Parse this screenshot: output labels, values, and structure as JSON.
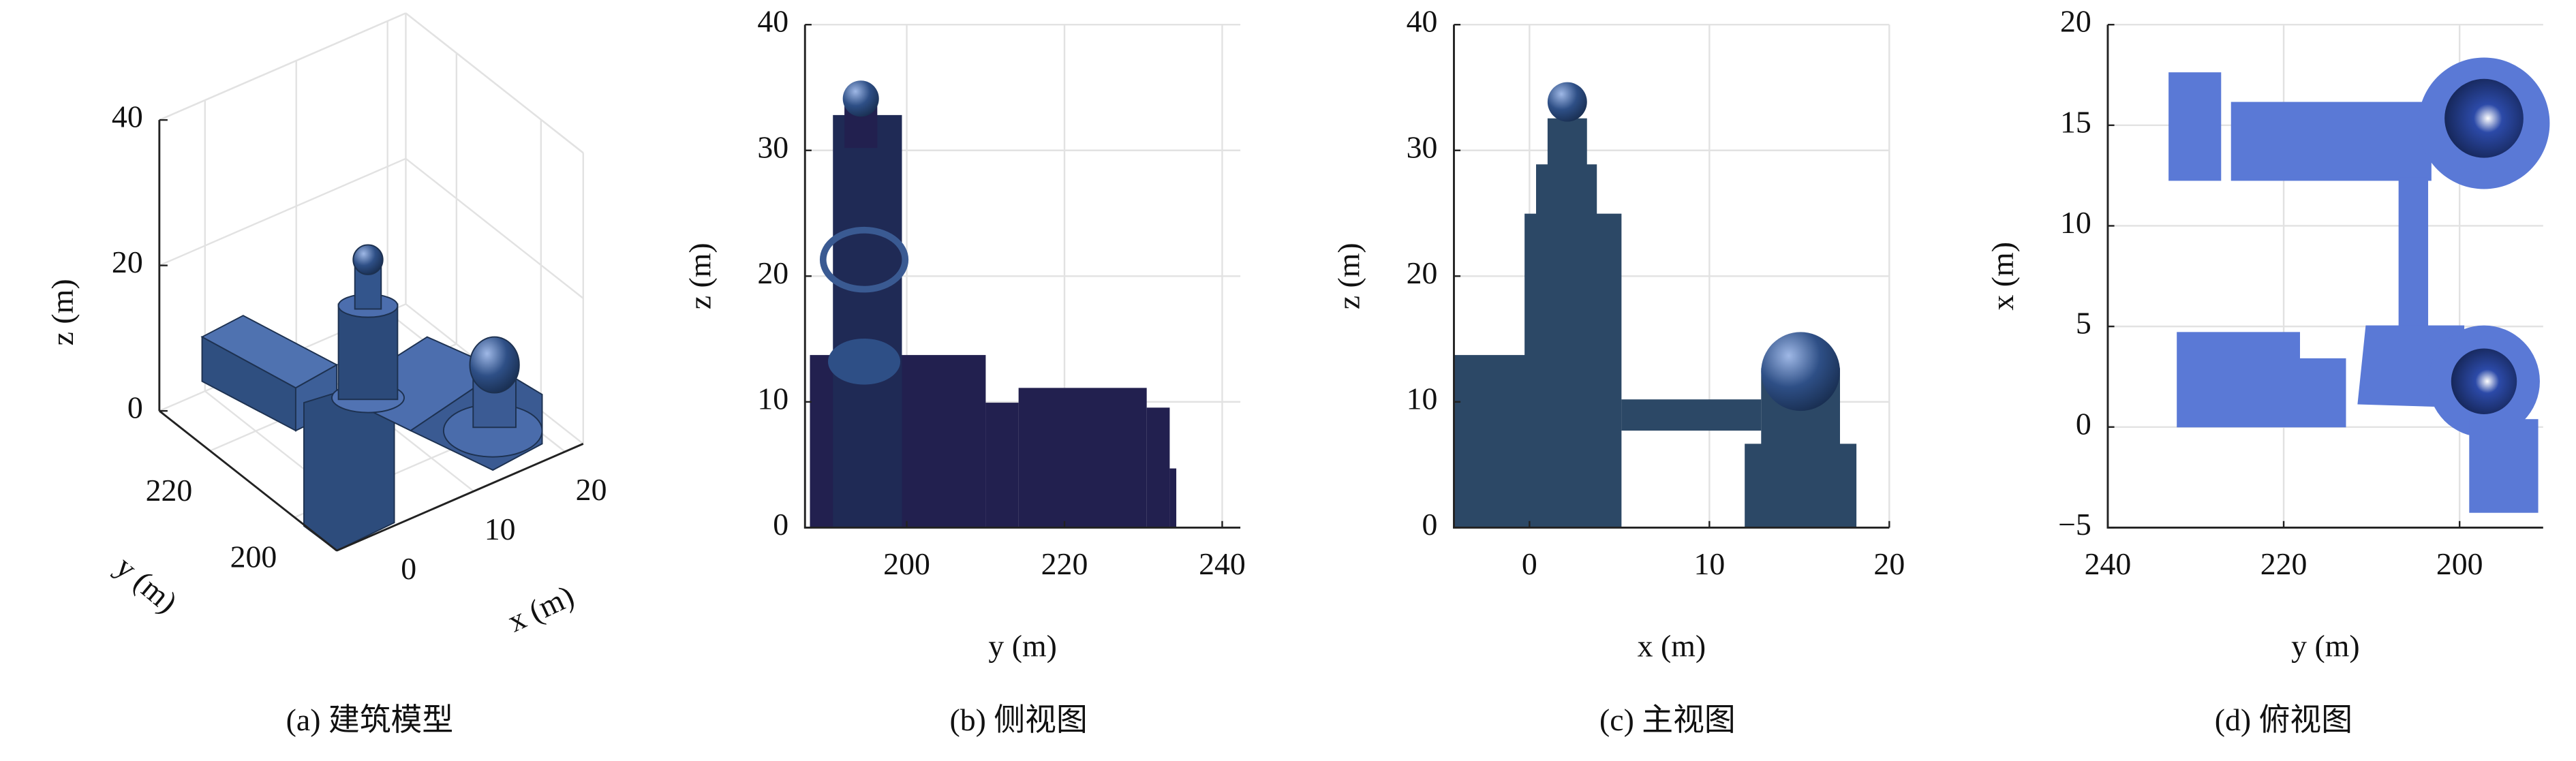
{
  "chart_data": [
    {
      "type": "3d",
      "xlabel": "x (m)",
      "ylabel": "y (m)",
      "zlabel": "z (m)",
      "xlim": [
        -5,
        22
      ],
      "ylim": [
        190,
        232
      ],
      "zlim": [
        0,
        40
      ],
      "xticks": [
        0,
        10,
        20
      ],
      "yticks": [
        200,
        220
      ],
      "zticks": [
        0,
        20,
        40
      ],
      "caption": "(a) 建筑模型"
    },
    {
      "type": "view",
      "xlabel": "y (m)",
      "ylabel": "z (m)",
      "xlim": [
        187.1,
        242.3
      ],
      "ylim": [
        0,
        40
      ],
      "xticks": [
        200,
        220,
        240
      ],
      "yticks": [
        0,
        10,
        20,
        30,
        40
      ],
      "grid": true,
      "caption": "(b) 侧视图"
    },
    {
      "type": "view",
      "xlabel": "x (m)",
      "ylabel": "z (m)",
      "xlim": [
        -4.2,
        20
      ],
      "ylim": [
        0,
        40
      ],
      "xticks": [
        0,
        10,
        20
      ],
      "yticks": [
        0,
        10,
        20,
        30,
        40
      ],
      "grid": true,
      "caption": "(c) 主视图"
    },
    {
      "type": "view",
      "xlabel": "y (m)",
      "ylabel": "x (m)",
      "xlim": [
        240,
        190.5
      ],
      "ylim": [
        -5,
        20
      ],
      "xticks": [
        240,
        220,
        200
      ],
      "yticks": [
        {
          "value": -5,
          "label": "−5"
        },
        0,
        5,
        10,
        15,
        20
      ],
      "grid": true,
      "caption": "(d) 俯视图"
    }
  ]
}
